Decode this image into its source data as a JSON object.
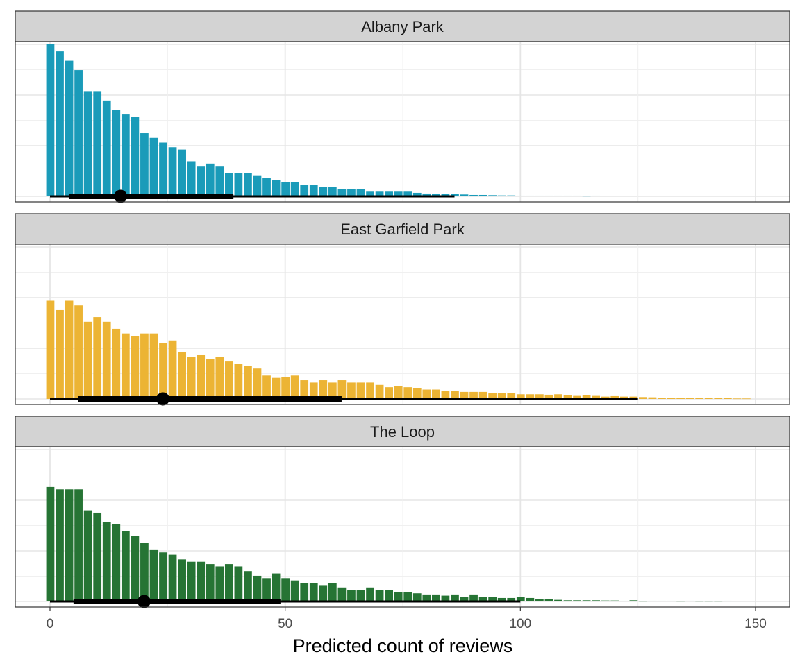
{
  "chart_data": {
    "type": "bar",
    "title": "",
    "xlabel": "Predicted count of reviews",
    "ylabel": "",
    "xlim": [
      -1,
      158
    ],
    "x_ticks": [
      0,
      50,
      100,
      150
    ],
    "x_tick_labels": [
      "0",
      "50",
      "100",
      "150"
    ],
    "grid": true,
    "y_axis_labels_shown": false,
    "bin_width": 2,
    "panels": [
      {
        "label": "Albany Park",
        "color": "#1a9bb9",
        "ymax": 65,
        "bins": {
          "x": [
            0,
            2,
            4,
            6,
            8,
            10,
            12,
            14,
            16,
            18,
            20,
            22,
            24,
            26,
            28,
            30,
            32,
            34,
            36,
            38,
            40,
            42,
            44,
            46,
            48,
            50,
            52,
            54,
            56,
            58,
            60,
            62,
            64,
            66,
            68,
            70,
            72,
            74,
            76,
            78,
            80,
            82,
            84,
            86,
            88,
            90,
            92,
            94,
            96,
            98,
            100,
            102,
            104,
            106,
            108,
            110,
            112,
            114,
            116
          ],
          "counts": [
            65,
            62,
            58,
            54,
            45,
            45,
            41,
            37,
            35,
            34,
            27,
            25,
            23,
            21,
            20,
            15,
            13,
            14,
            13,
            10,
            10,
            10,
            9,
            8,
            7,
            6,
            6,
            5,
            5,
            4,
            4,
            3,
            3,
            3,
            2,
            2,
            2,
            2,
            2,
            1.5,
            1.2,
            1,
            1,
            1,
            0.8,
            0.6,
            0.6,
            0.5,
            0.4,
            0.4,
            0.3,
            0.3,
            0.3,
            0.3,
            0.3,
            0.3,
            0.3,
            0.2,
            0.3
          ]
        },
        "median": 15,
        "interval_66": [
          4,
          39
        ],
        "interval_95": [
          0,
          86
        ]
      },
      {
        "label": "East Garfield Park",
        "color": "#ecb434",
        "ymax": 65,
        "bins": {
          "x": [
            0,
            2,
            4,
            6,
            8,
            10,
            12,
            14,
            16,
            18,
            20,
            22,
            24,
            26,
            28,
            30,
            32,
            34,
            36,
            38,
            40,
            42,
            44,
            46,
            48,
            50,
            52,
            54,
            56,
            58,
            60,
            62,
            64,
            66,
            68,
            70,
            72,
            74,
            76,
            78,
            80,
            82,
            84,
            86,
            88,
            90,
            92,
            94,
            96,
            98,
            100,
            102,
            104,
            106,
            108,
            110,
            112,
            114,
            116,
            118,
            120,
            122,
            124,
            126,
            128,
            130,
            132,
            134,
            136,
            138,
            140,
            142,
            144,
            146,
            148
          ],
          "counts": [
            42,
            38,
            42,
            40,
            33,
            35,
            33,
            30,
            28,
            27,
            28,
            28,
            24,
            25,
            20,
            18,
            19,
            17,
            18,
            16,
            15,
            14,
            13,
            10,
            9,
            9.5,
            10,
            8,
            7,
            8,
            7,
            8,
            7,
            7,
            7,
            6,
            5,
            5.5,
            5,
            4.5,
            4,
            4,
            3.5,
            3.5,
            3,
            3,
            3,
            2.5,
            2.5,
            2.5,
            2,
            2,
            2,
            1.8,
            2,
            1.6,
            1.3,
            1.5,
            1.3,
            1,
            1.2,
            1,
            1,
            0.8,
            0.7,
            0.5,
            0.5,
            0.5,
            0.5,
            0.4,
            0.3,
            0.3,
            0.3,
            0.2,
            0.2
          ]
        },
        "median": 24,
        "interval_66": [
          6,
          62
        ],
        "interval_95": [
          0,
          125
        ]
      },
      {
        "label": "The Loop",
        "color": "#267434",
        "ymax": 65,
        "bins": {
          "x": [
            0,
            2,
            4,
            6,
            8,
            10,
            12,
            14,
            16,
            18,
            20,
            22,
            24,
            26,
            28,
            30,
            32,
            34,
            36,
            38,
            40,
            42,
            44,
            46,
            48,
            50,
            52,
            54,
            56,
            58,
            60,
            62,
            64,
            66,
            68,
            70,
            72,
            74,
            76,
            78,
            80,
            82,
            84,
            86,
            88,
            90,
            92,
            94,
            96,
            98,
            100,
            102,
            104,
            106,
            108,
            110,
            112,
            114,
            116,
            118,
            120,
            122,
            124,
            126,
            128,
            130,
            132,
            134,
            136,
            138,
            140,
            142,
            144
          ],
          "counts": [
            49,
            48,
            48,
            48,
            39,
            38,
            34,
            33,
            30,
            28,
            25,
            22,
            21,
            20,
            18,
            17,
            17,
            16,
            15,
            16,
            15,
            13,
            11,
            10,
            12,
            10,
            9,
            8,
            8,
            7,
            8,
            6,
            5,
            5,
            6,
            5,
            5,
            4,
            4,
            3.5,
            3,
            3,
            2.5,
            3,
            2,
            3,
            2,
            2,
            1.5,
            1.5,
            2,
            1.5,
            1,
            1,
            0.7,
            0.5,
            0.5,
            0.5,
            0.5,
            0.4,
            0.4,
            0.3,
            0.5,
            0.2,
            0.3,
            0.3,
            0.3,
            0.2,
            0.3,
            0.2,
            0.2,
            0.2,
            0.3
          ]
        },
        "median": 20,
        "interval_66": [
          5,
          49
        ],
        "interval_95": [
          0,
          100
        ]
      }
    ]
  }
}
